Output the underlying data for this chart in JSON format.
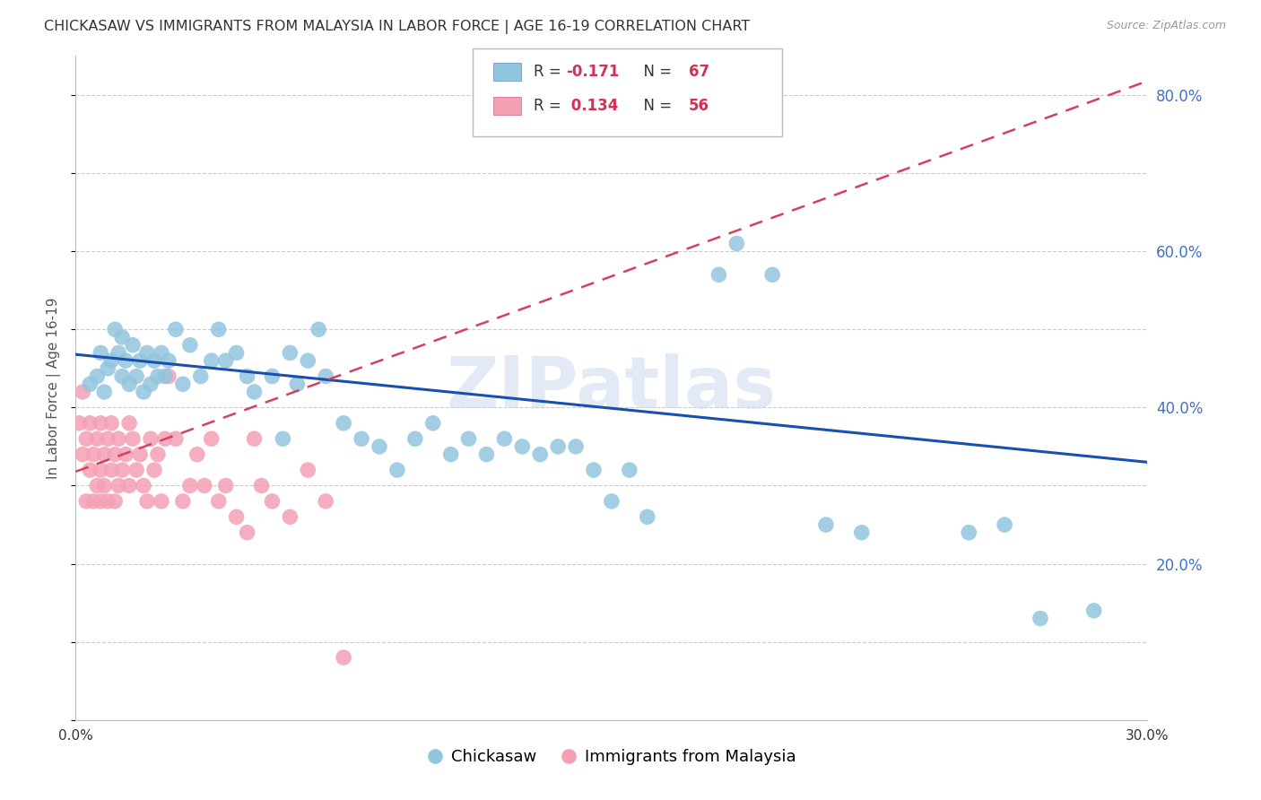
{
  "title": "CHICKASAW VS IMMIGRANTS FROM MALAYSIA IN LABOR FORCE | AGE 16-19 CORRELATION CHART",
  "source": "Source: ZipAtlas.com",
  "ylabel": "In Labor Force | Age 16-19",
  "legend_labels": [
    "Chickasaw",
    "Immigrants from Malaysia"
  ],
  "R_chickasaw": -0.171,
  "N_chickasaw": 67,
  "R_malaysia": 0.134,
  "N_malaysia": 56,
  "xlim": [
    0.0,
    0.3
  ],
  "ylim": [
    0.0,
    0.85
  ],
  "xticks": [
    0.0,
    0.05,
    0.1,
    0.15,
    0.2,
    0.25,
    0.3
  ],
  "xtick_labels": [
    "0.0%",
    "",
    "",
    "",
    "",
    "",
    "30.0%"
  ],
  "yticks_right": [
    0.2,
    0.4,
    0.6,
    0.8
  ],
  "ytick_labels_right": [
    "20.0%",
    "40.0%",
    "60.0%",
    "80.0%"
  ],
  "blue_scatter_color": "#92c5de",
  "blue_line_color": "#1a4faf",
  "pink_scatter_color": "#f4a0b4",
  "pink_line_color": "#d44060",
  "watermark_text": "ZIPatlas",
  "watermark_color": "#ccd9ee",
  "grid_color": "#cccccc",
  "background_color": "#ffffff",
  "title_color": "#333333",
  "right_tick_color": "#4472c4",
  "chickasaw_x": [
    0.004,
    0.006,
    0.007,
    0.008,
    0.009,
    0.01,
    0.011,
    0.012,
    0.013,
    0.013,
    0.014,
    0.015,
    0.016,
    0.017,
    0.018,
    0.019,
    0.02,
    0.021,
    0.022,
    0.023,
    0.024,
    0.025,
    0.026,
    0.028,
    0.03,
    0.032,
    0.035,
    0.038,
    0.04,
    0.042,
    0.045,
    0.048,
    0.05,
    0.055,
    0.058,
    0.06,
    0.062,
    0.065,
    0.068,
    0.07,
    0.075,
    0.08,
    0.085,
    0.09,
    0.095,
    0.1,
    0.105,
    0.11,
    0.115,
    0.12,
    0.125,
    0.13,
    0.135,
    0.14,
    0.145,
    0.15,
    0.155,
    0.16,
    0.18,
    0.185,
    0.195,
    0.21,
    0.22,
    0.25,
    0.26,
    0.27,
    0.285
  ],
  "chickasaw_y": [
    0.43,
    0.44,
    0.47,
    0.42,
    0.45,
    0.46,
    0.5,
    0.47,
    0.49,
    0.44,
    0.46,
    0.43,
    0.48,
    0.44,
    0.46,
    0.42,
    0.47,
    0.43,
    0.46,
    0.44,
    0.47,
    0.44,
    0.46,
    0.5,
    0.43,
    0.48,
    0.44,
    0.46,
    0.5,
    0.46,
    0.47,
    0.44,
    0.42,
    0.44,
    0.36,
    0.47,
    0.43,
    0.46,
    0.5,
    0.44,
    0.38,
    0.36,
    0.35,
    0.32,
    0.36,
    0.38,
    0.34,
    0.36,
    0.34,
    0.36,
    0.35,
    0.34,
    0.35,
    0.35,
    0.32,
    0.28,
    0.32,
    0.26,
    0.57,
    0.61,
    0.57,
    0.25,
    0.24,
    0.24,
    0.25,
    0.13,
    0.14
  ],
  "malaysia_x": [
    0.001,
    0.002,
    0.002,
    0.003,
    0.003,
    0.004,
    0.004,
    0.005,
    0.005,
    0.006,
    0.006,
    0.007,
    0.007,
    0.007,
    0.008,
    0.008,
    0.009,
    0.009,
    0.01,
    0.01,
    0.011,
    0.011,
    0.012,
    0.012,
    0.013,
    0.014,
    0.015,
    0.015,
    0.016,
    0.017,
    0.018,
    0.019,
    0.02,
    0.021,
    0.022,
    0.023,
    0.024,
    0.025,
    0.026,
    0.028,
    0.03,
    0.032,
    0.034,
    0.036,
    0.038,
    0.04,
    0.042,
    0.045,
    0.048,
    0.05,
    0.052,
    0.055,
    0.06,
    0.065,
    0.07,
    0.075
  ],
  "malaysia_y": [
    0.38,
    0.34,
    0.42,
    0.36,
    0.28,
    0.32,
    0.38,
    0.34,
    0.28,
    0.3,
    0.36,
    0.32,
    0.38,
    0.28,
    0.34,
    0.3,
    0.36,
    0.28,
    0.32,
    0.38,
    0.34,
    0.28,
    0.3,
    0.36,
    0.32,
    0.34,
    0.3,
    0.38,
    0.36,
    0.32,
    0.34,
    0.3,
    0.28,
    0.36,
    0.32,
    0.34,
    0.28,
    0.36,
    0.44,
    0.36,
    0.28,
    0.3,
    0.34,
    0.3,
    0.36,
    0.28,
    0.3,
    0.26,
    0.24,
    0.36,
    0.3,
    0.28,
    0.26,
    0.32,
    0.28,
    0.08
  ],
  "chickasaw_trend_x0": 0.0,
  "chickasaw_trend_y0": 0.468,
  "chickasaw_trend_x1": 0.3,
  "chickasaw_trend_y1": 0.33,
  "malaysia_trend_x0": 0.0,
  "malaysia_trend_y0": 0.318,
  "malaysia_trend_x1": 0.3,
  "malaysia_trend_y1": 0.818
}
